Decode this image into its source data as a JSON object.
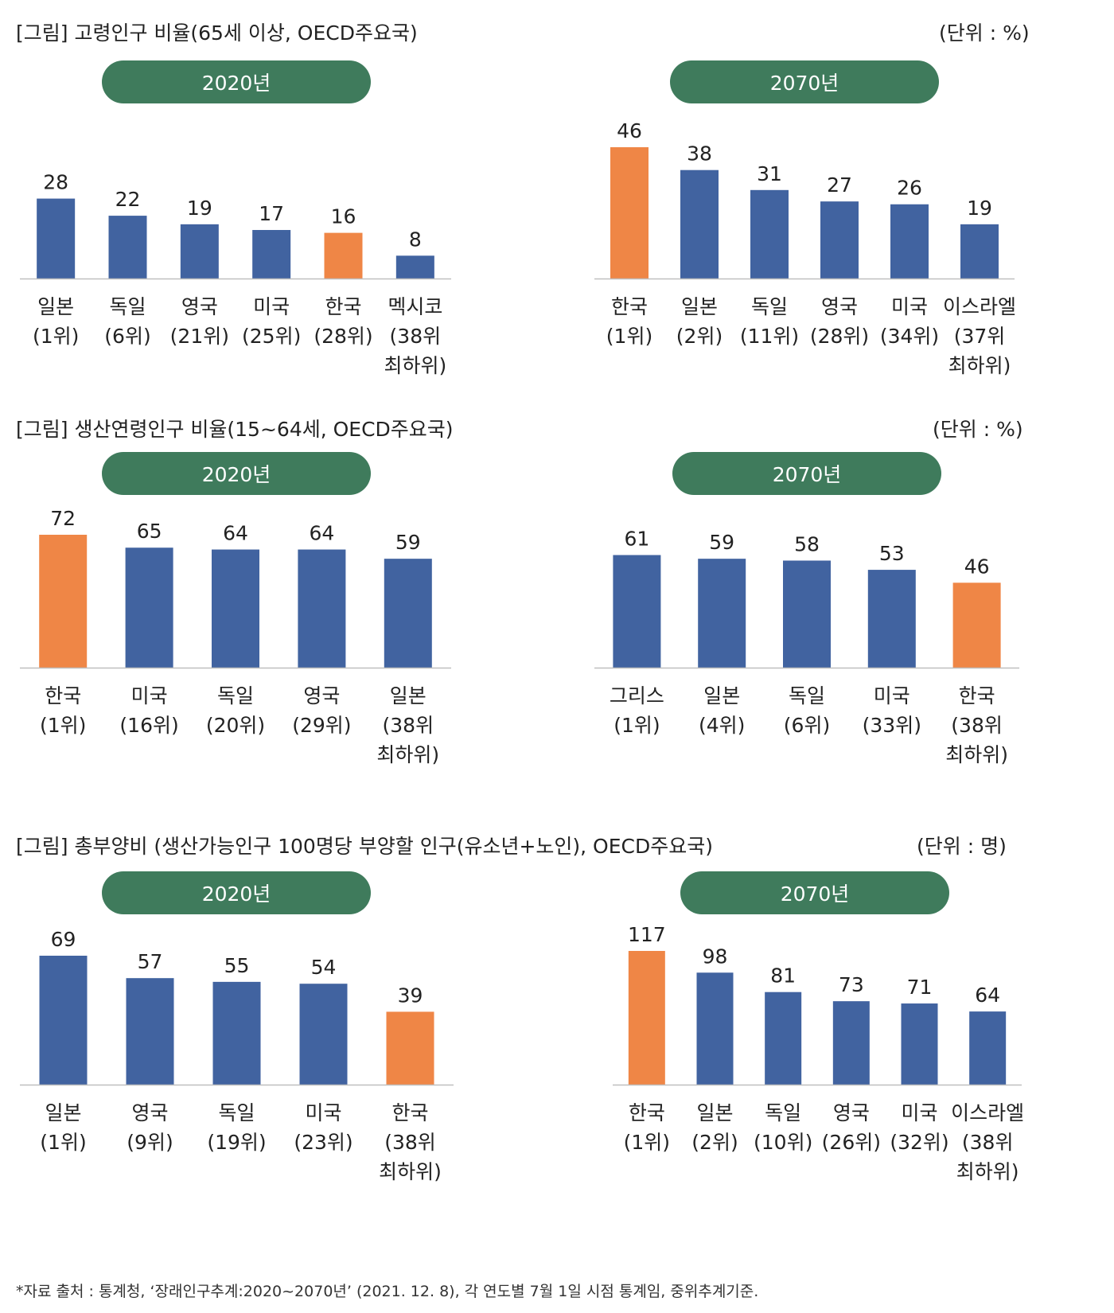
{
  "colors": {
    "bar": "#4163a0",
    "highlight": "#ef8646",
    "pill": "#3f7b5c",
    "axis": "#bfbfbf"
  },
  "footer": {
    "source": "*자료 출처 : 통계청, ‘장래인구추계:2020~2070년’ (2021. 12. 8), 각 연도별 7월 1일 시점 통계임, 중위추계기준."
  },
  "sections": [
    {
      "title": "[그림] 고령인구 비율(65세 이상, OECD주요국)",
      "unit": "(단위 : %)"
    },
    {
      "title": "[그림] 생산연령인구 비율(15~64세, OECD주요국)",
      "unit": "(단위 : %)"
    },
    {
      "title": "[그림] 총부양비 (생산가능인구 100명당 부양할 인구(유소년+노인), OECD주요국)",
      "unit": "(단위 : 명)"
    }
  ],
  "chart_data": [
    {
      "type": "bar",
      "title": "2020년",
      "categories": [
        [
          "일본",
          "(1위)"
        ],
        [
          "독일",
          "(6위)"
        ],
        [
          "영국",
          "(21위)"
        ],
        [
          "미국",
          "(25위)"
        ],
        [
          "한국",
          "(28위)"
        ],
        [
          "멕시코",
          "(38위",
          "최하위)"
        ]
      ],
      "values": [
        28,
        22,
        19,
        17,
        16,
        8
      ],
      "highlight_index": 4,
      "ylim": [
        0,
        46
      ]
    },
    {
      "type": "bar",
      "title": "2070년",
      "categories": [
        [
          "한국",
          "(1위)"
        ],
        [
          "일본",
          "(2위)"
        ],
        [
          "독일",
          "(11위)"
        ],
        [
          "영국",
          "(28위)"
        ],
        [
          "미국",
          "(34위)"
        ],
        [
          "이스라엘",
          "(37위",
          "최하위)"
        ]
      ],
      "values": [
        46,
        38,
        31,
        27,
        26,
        19
      ],
      "highlight_index": 0,
      "ylim": [
        0,
        46
      ]
    },
    {
      "type": "bar",
      "title": "2020년",
      "categories": [
        [
          "한국",
          "(1위)"
        ],
        [
          "미국",
          "(16위)"
        ],
        [
          "독일",
          "(20위)"
        ],
        [
          "영국",
          "(29위)"
        ],
        [
          "일본",
          "(38위",
          "최하위)"
        ]
      ],
      "values": [
        72,
        65,
        64,
        64,
        59
      ],
      "highlight_index": 0,
      "ylim": [
        0,
        72
      ]
    },
    {
      "type": "bar",
      "title": "2070년",
      "categories": [
        [
          "그리스",
          "(1위)"
        ],
        [
          "일본",
          "(4위)"
        ],
        [
          "독일",
          "(6위)"
        ],
        [
          "미국",
          "(33위)"
        ],
        [
          "한국",
          "(38위",
          "최하위)"
        ]
      ],
      "values": [
        61,
        59,
        58,
        53,
        46
      ],
      "highlight_index": 4,
      "ylim": [
        0,
        72
      ]
    },
    {
      "type": "bar",
      "title": "2020년",
      "categories": [
        [
          "일본",
          "(1위)"
        ],
        [
          "영국",
          "(9위)"
        ],
        [
          "독일",
          "(19위)"
        ],
        [
          "미국",
          "(23위)"
        ],
        [
          "한국",
          "(38위",
          "최하위)"
        ]
      ],
      "values": [
        69,
        57,
        55,
        54,
        39
      ],
      "highlight_index": 4,
      "ylim": [
        0,
        69
      ]
    },
    {
      "type": "bar",
      "title": "2070년",
      "categories": [
        [
          "한국",
          "(1위)"
        ],
        [
          "일본",
          "(2위)"
        ],
        [
          "독일",
          "(10위)"
        ],
        [
          "영국",
          "(26위)"
        ],
        [
          "미국",
          "(32위)"
        ],
        [
          "이스라엘",
          "(38위",
          "최하위)"
        ]
      ],
      "values": [
        117,
        98,
        81,
        73,
        71,
        64
      ],
      "highlight_index": 0,
      "ylim": [
        0,
        117
      ]
    }
  ]
}
